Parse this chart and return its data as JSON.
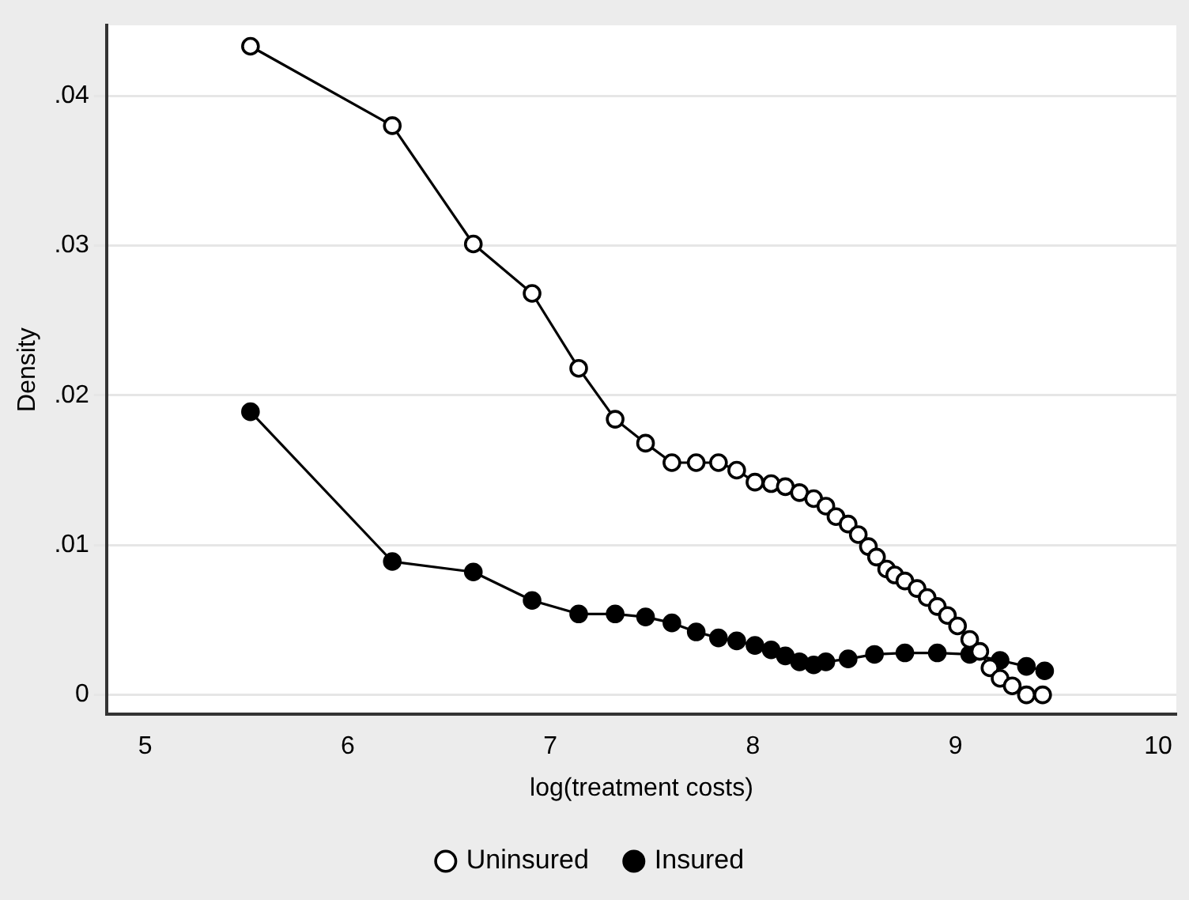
{
  "chart_data": {
    "type": "line",
    "xlabel": "log(treatment costs)",
    "ylabel": "Density",
    "xlim": [
      4.81,
      10.09
    ],
    "xticks": [
      5,
      6,
      7,
      8,
      9,
      10
    ],
    "ylim": [
      -0.0013,
      0.0447
    ],
    "yticks": [
      {
        "value": 0,
        "label": "0"
      },
      {
        "value": 0.01,
        "label": ".01"
      },
      {
        "value": 0.02,
        "label": ".02"
      },
      {
        "value": 0.03,
        "label": ".03"
      },
      {
        "value": 0.04,
        "label": ".04"
      }
    ],
    "grid": "y",
    "legend": "bottom",
    "series": [
      {
        "name": "Uninsured",
        "color": "#000000",
        "marker": "circle",
        "x": [
          5.52,
          6.22,
          6.62,
          6.91,
          7.14,
          7.32,
          7.47,
          7.6,
          7.72,
          7.83,
          7.92,
          8.01,
          8.09,
          8.16,
          8.23,
          8.3,
          8.36,
          8.41,
          8.47,
          8.52,
          8.57,
          8.61,
          8.66,
          8.7,
          8.75,
          8.81,
          8.86,
          8.91,
          8.96,
          9.01,
          9.07,
          9.12,
          9.17,
          9.22,
          9.28,
          9.35,
          9.43
        ],
        "values": [
          0.0433,
          0.038,
          0.0301,
          0.0268,
          0.0218,
          0.0184,
          0.0168,
          0.0155,
          0.0155,
          0.0155,
          0.015,
          0.0142,
          0.0141,
          0.0139,
          0.0135,
          0.0131,
          0.0126,
          0.0119,
          0.0114,
          0.0107,
          0.0099,
          0.0092,
          0.0084,
          0.008,
          0.0076,
          0.0071,
          0.0065,
          0.0059,
          0.0053,
          0.0046,
          0.0037,
          0.0029,
          0.0018,
          0.0011,
          0.0006,
          0,
          0
        ]
      },
      {
        "name": "Insured",
        "color": "#000000",
        "marker": "circle",
        "x": [
          5.52,
          6.22,
          6.62,
          6.91,
          7.14,
          7.32,
          7.47,
          7.6,
          7.72,
          7.83,
          7.92,
          8.01,
          8.09,
          8.16,
          8.23,
          8.3,
          8.36,
          8.47,
          8.6,
          8.75,
          8.91,
          9.07,
          9.22,
          9.35,
          9.44
        ],
        "values": [
          0.0189,
          0.0089,
          0.0082,
          0.0063,
          0.0054,
          0.0054,
          0.0052,
          0.0048,
          0.0042,
          0.0038,
          0.0036,
          0.0033,
          0.003,
          0.0026,
          0.0022,
          0.002,
          0.0022,
          0.0024,
          0.0027,
          0.0028,
          0.0028,
          0.0027,
          0.0023,
          0.0019,
          0.0016
        ]
      }
    ]
  }
}
